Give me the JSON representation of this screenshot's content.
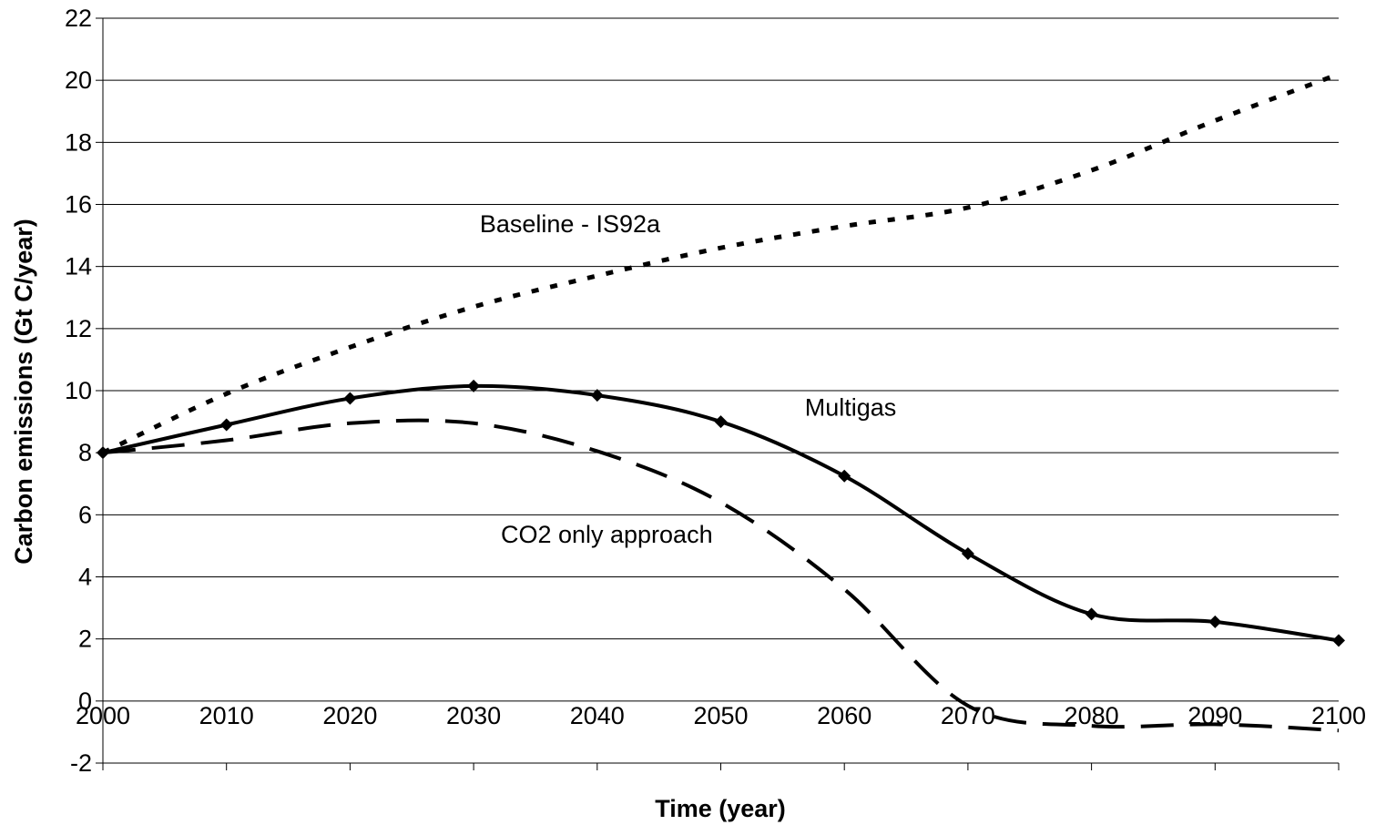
{
  "chart_data": {
    "type": "line",
    "title": "",
    "xlabel": "Time (year)",
    "ylabel": "Carbon emissions (Gt C/year)",
    "xlim": [
      2000,
      2100
    ],
    "ylim": [
      -2,
      22
    ],
    "x_ticks": [
      2000,
      2010,
      2020,
      2030,
      2040,
      2050,
      2060,
      2070,
      2080,
      2090,
      2100
    ],
    "y_ticks": [
      -2,
      0,
      2,
      4,
      6,
      8,
      10,
      12,
      14,
      16,
      18,
      20,
      22
    ],
    "grid": "horizontal",
    "series": [
      {
        "name": "Baseline - IS92a",
        "style": "dotted",
        "color": "#000000",
        "markers": false,
        "x": [
          2000,
          2010,
          2020,
          2030,
          2040,
          2050,
          2060,
          2070,
          2080,
          2090,
          2100
        ],
        "values": [
          8.0,
          9.9,
          11.4,
          12.7,
          13.7,
          14.6,
          15.3,
          15.9,
          17.1,
          18.7,
          20.2
        ]
      },
      {
        "name": "Multigas",
        "style": "solid",
        "color": "#000000",
        "markers": true,
        "x": [
          2000,
          2010,
          2020,
          2030,
          2040,
          2050,
          2060,
          2070,
          2080,
          2090,
          2100
        ],
        "values": [
          8.0,
          8.9,
          9.75,
          10.15,
          9.85,
          9.0,
          7.25,
          4.75,
          2.8,
          2.55,
          1.95
        ]
      },
      {
        "name": "CO2 only approach",
        "style": "dashed",
        "color": "#000000",
        "markers": false,
        "x": [
          2000,
          2010,
          2020,
          2030,
          2040,
          2050,
          2060,
          2070,
          2080,
          2090,
          2100
        ],
        "values": [
          8.0,
          8.4,
          8.95,
          8.95,
          8.05,
          6.4,
          3.6,
          -0.15,
          -0.8,
          -0.75,
          -0.95
        ]
      }
    ],
    "annotations": [
      {
        "text": "Baseline - IS92a",
        "x": 2030.5,
        "y": 15.1
      },
      {
        "text": "Multigas",
        "x": 2056.8,
        "y": 9.2
      },
      {
        "text": "CO2 only approach",
        "x": 2032.2,
        "y": 5.1
      }
    ]
  }
}
